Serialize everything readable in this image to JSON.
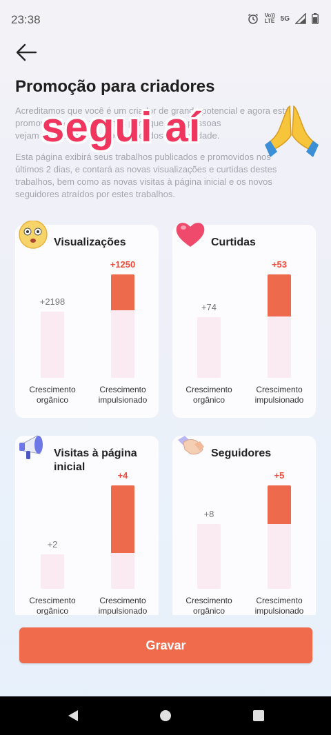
{
  "status": {
    "time": "23:38",
    "lte_label": "Vo))\nLTE",
    "network": "5G"
  },
  "page": {
    "title": "Promoção para criadores",
    "desc1_lines": [
      "Acreditamos que você é um criador de grande potencial e agora está",
      "promovendo seus trabalhos para que mais pessoas",
      "vejam seus trabalhos e os conteúdos de qualidade."
    ],
    "desc2_lines": [
      "Esta página exibirá seus trabalhos publicados e promovidos nos",
      "últimos 2 dias, e contará as novas visualizações e curtidas destes",
      "trabalhos, bem como as novas visitas à página inicial e os novos",
      "seguidores atraídos por estes trabalhos."
    ],
    "overlay": "segui aí"
  },
  "labels": {
    "organic": [
      "Crescimento",
      "orgânico"
    ],
    "boosted": [
      "Crescimento",
      "impulsionado"
    ]
  },
  "cards": [
    {
      "title": "Visualizações",
      "icon": "surprised-face-icon",
      "organic_value": "+2198",
      "boosted_value": "+1250",
      "organic_pct": 0.72,
      "boosted_pct": 0.35
    },
    {
      "title": "Curtidas",
      "icon": "heart-icon",
      "organic_value": "+74",
      "boosted_value": "+53",
      "organic_pct": 0.6,
      "boosted_pct": 0.42
    },
    {
      "title": "Visitas à página inicial",
      "icon": "megaphone-icon",
      "organic_value": "+2",
      "boosted_value": "+4",
      "organic_pct": 0.5,
      "boosted_pct": 0.67
    },
    {
      "title": "Seguidores",
      "icon": "handshake-icon",
      "organic_value": "+8",
      "boosted_value": "+5",
      "organic_pct": 0.62,
      "boosted_pct": 0.38
    }
  ],
  "button": {
    "record": "Gravar"
  },
  "colors": {
    "accent": "#ee6a4c",
    "bar_bg": "#f9ebf1",
    "overlay_text": "#f0365e"
  }
}
